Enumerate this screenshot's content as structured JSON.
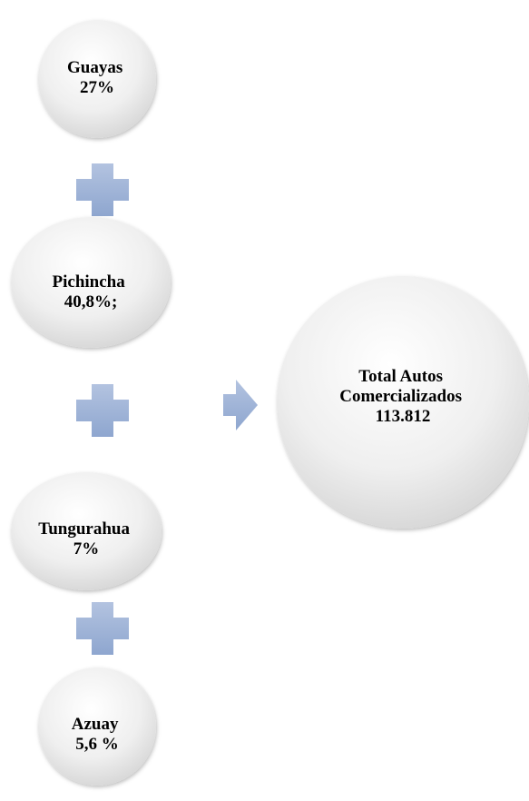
{
  "nodes": [
    {
      "lines": [
        "Guayas",
        "27%"
      ]
    },
    {
      "lines": [
        "Pichincha",
        "40,8%;"
      ]
    },
    {
      "lines": [
        "Tungurahua",
        "7%"
      ]
    },
    {
      "lines": [
        "Azuay",
        "5,6 %"
      ]
    }
  ],
  "result": {
    "lines": [
      "Total Autos",
      "Comercializados",
      "113.812"
    ]
  }
}
